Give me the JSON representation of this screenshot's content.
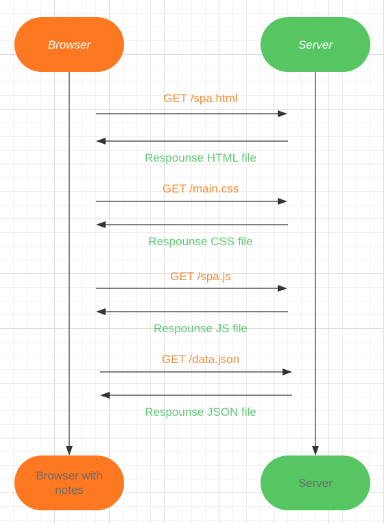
{
  "colors": {
    "browser": "#fe7721",
    "server": "#55c662",
    "request_text": "#f68c3c",
    "response_text": "#5fc876",
    "line": "#333333"
  },
  "participants": {
    "browser_top": "Browser",
    "server_top": "Server",
    "browser_bottom": "Browser with notes",
    "server_bottom": "Server"
  },
  "messages": [
    {
      "direction": "request",
      "label": "GET /spa.html"
    },
    {
      "direction": "response",
      "label": "Respounse HTML file"
    },
    {
      "direction": "request",
      "label": "GET /main.css"
    },
    {
      "direction": "response",
      "label": "Respounse CSS file"
    },
    {
      "direction": "request",
      "label": "GET /spa.js"
    },
    {
      "direction": "response",
      "label": "Respounse JS file"
    },
    {
      "direction": "request",
      "label": "GET /data.json"
    },
    {
      "direction": "response",
      "label": "Respounse JSON file"
    }
  ]
}
